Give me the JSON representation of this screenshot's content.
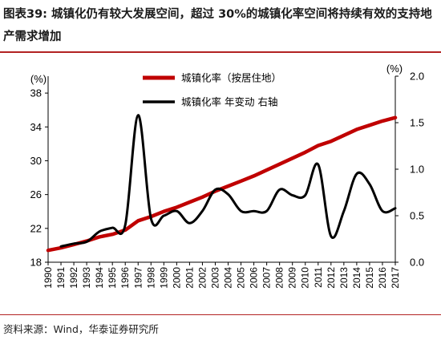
{
  "figure": {
    "title_prefix": "图表39:",
    "title_text": "城镇化仍有较大发展空间，超过 30%的城镇化率空间将持续有效的支持地产需求增加",
    "source": "资料来源：Wind，华泰证券研究所",
    "colors": {
      "urbanization": "#c00000",
      "change": "#000000",
      "rule": "#b22222"
    }
  },
  "chart_data": {
    "type": "line",
    "x": [
      1990,
      1991,
      1992,
      1993,
      1994,
      1995,
      1996,
      1997,
      1998,
      1999,
      2000,
      2001,
      2002,
      2003,
      2004,
      2005,
      2006,
      2007,
      2008,
      2009,
      2010,
      2011,
      2012,
      2013,
      2014,
      2015,
      2016,
      2017
    ],
    "series": [
      {
        "name": "城镇化率（按居住地）",
        "axis": "left",
        "color": "#c00000",
        "values": [
          19.4,
          19.7,
          20.1,
          20.5,
          21.0,
          21.3,
          21.8,
          22.9,
          23.4,
          24.0,
          24.5,
          25.1,
          25.7,
          26.4,
          27.0,
          27.6,
          28.2,
          28.9,
          29.6,
          30.3,
          31.0,
          31.8,
          32.3,
          33.0,
          33.7,
          34.2,
          34.7,
          35.1
        ]
      },
      {
        "name": "城镇化率 年变动 右轴",
        "axis": "right",
        "color": "#000000",
        "values": [
          null,
          0.17,
          0.2,
          0.22,
          0.33,
          0.37,
          0.4,
          1.58,
          0.47,
          0.5,
          0.55,
          0.42,
          0.55,
          0.78,
          0.73,
          0.55,
          0.55,
          0.55,
          0.78,
          0.72,
          0.72,
          1.05,
          0.28,
          0.55,
          0.95,
          0.84,
          0.55,
          0.58
        ]
      }
    ],
    "left_axis": {
      "unit": "(%)",
      "ticks": [
        18,
        22,
        26,
        30,
        34,
        38
      ],
      "ylim": [
        18,
        40
      ]
    },
    "right_axis": {
      "unit": "(%)",
      "ticks": [
        "0.0",
        "0.5",
        "1.0",
        "1.5",
        "2.0"
      ],
      "ylim": [
        0,
        2
      ]
    },
    "x_ticks": [
      "1990",
      "1991",
      "1992",
      "1993",
      "1994",
      "1995",
      "1996",
      "1997",
      "1998",
      "1999",
      "2000",
      "2001",
      "2002",
      "2003",
      "2004",
      "2005",
      "2006",
      "2007",
      "2008",
      "2009",
      "2010",
      "2011",
      "2012",
      "2013",
      "2014",
      "2015",
      "2016",
      "2017"
    ],
    "grid": false,
    "legend_position": "top-center"
  }
}
